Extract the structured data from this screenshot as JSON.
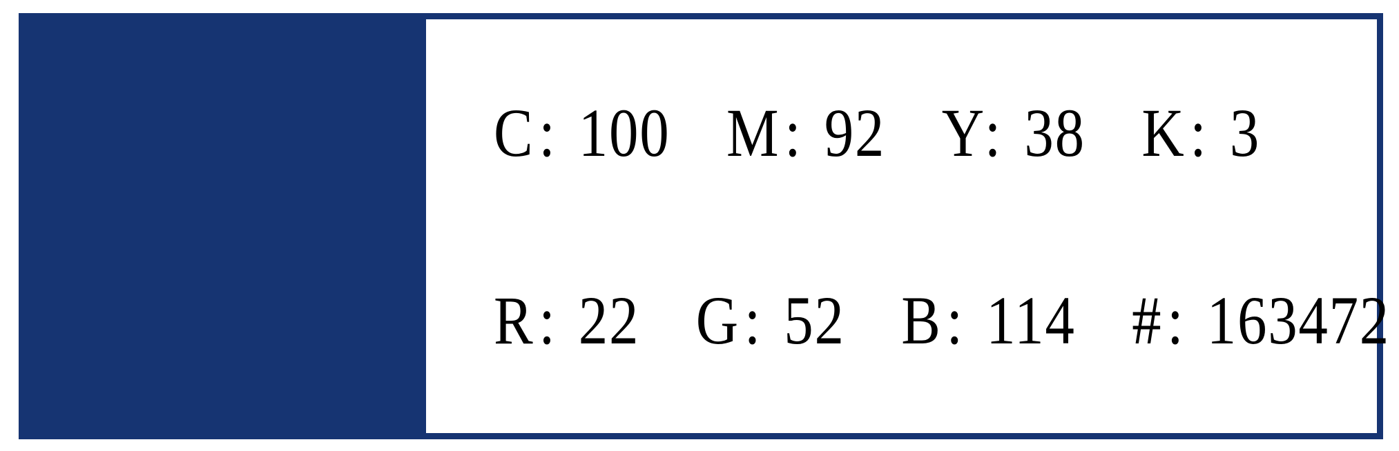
{
  "colors": {
    "swatch": "#163472",
    "card_border": "#163472",
    "panel_background": "#ffffff",
    "page_background": "#ffffff",
    "text": "#000000"
  },
  "card": {
    "swatch_hex": "#163472",
    "rows": [
      {
        "pairs": [
          {
            "label": "C:",
            "value": "100"
          },
          {
            "label": "M:",
            "value": "92"
          },
          {
            "label": "Y:",
            "value": "38"
          },
          {
            "label": "K:",
            "value": "3"
          }
        ]
      },
      {
        "pairs": [
          {
            "label": "R:",
            "value": "22"
          },
          {
            "label": "G:",
            "value": "52"
          },
          {
            "label": "B:",
            "value": "114"
          },
          {
            "label": "#:",
            "value": "163472"
          }
        ]
      }
    ]
  }
}
